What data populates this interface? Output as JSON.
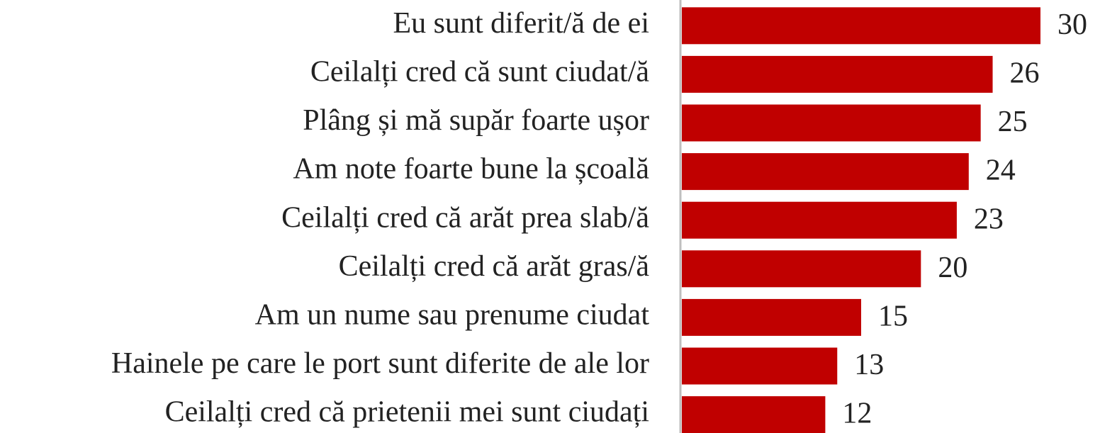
{
  "chart_data": {
    "type": "bar",
    "orientation": "horizontal",
    "categories": [
      "Eu sunt diferit/ă de ei",
      "Ceilalți cred că sunt ciudat/ă",
      "Plâng și mă supăr foarte ușor",
      "Am note foarte bune la școală",
      "Ceilalți cred că arăt prea slab/ă",
      "Ceilalți cred că arăt gras/ă",
      "Am un nume sau prenume ciudat",
      "Hainele pe care le port sunt diferite de ale lor",
      "Ceilalți cred că prietenii mei sunt ciudați"
    ],
    "values": [
      30,
      26,
      25,
      24,
      23,
      20,
      15,
      13,
      12
    ],
    "color": "#c00000"
  }
}
